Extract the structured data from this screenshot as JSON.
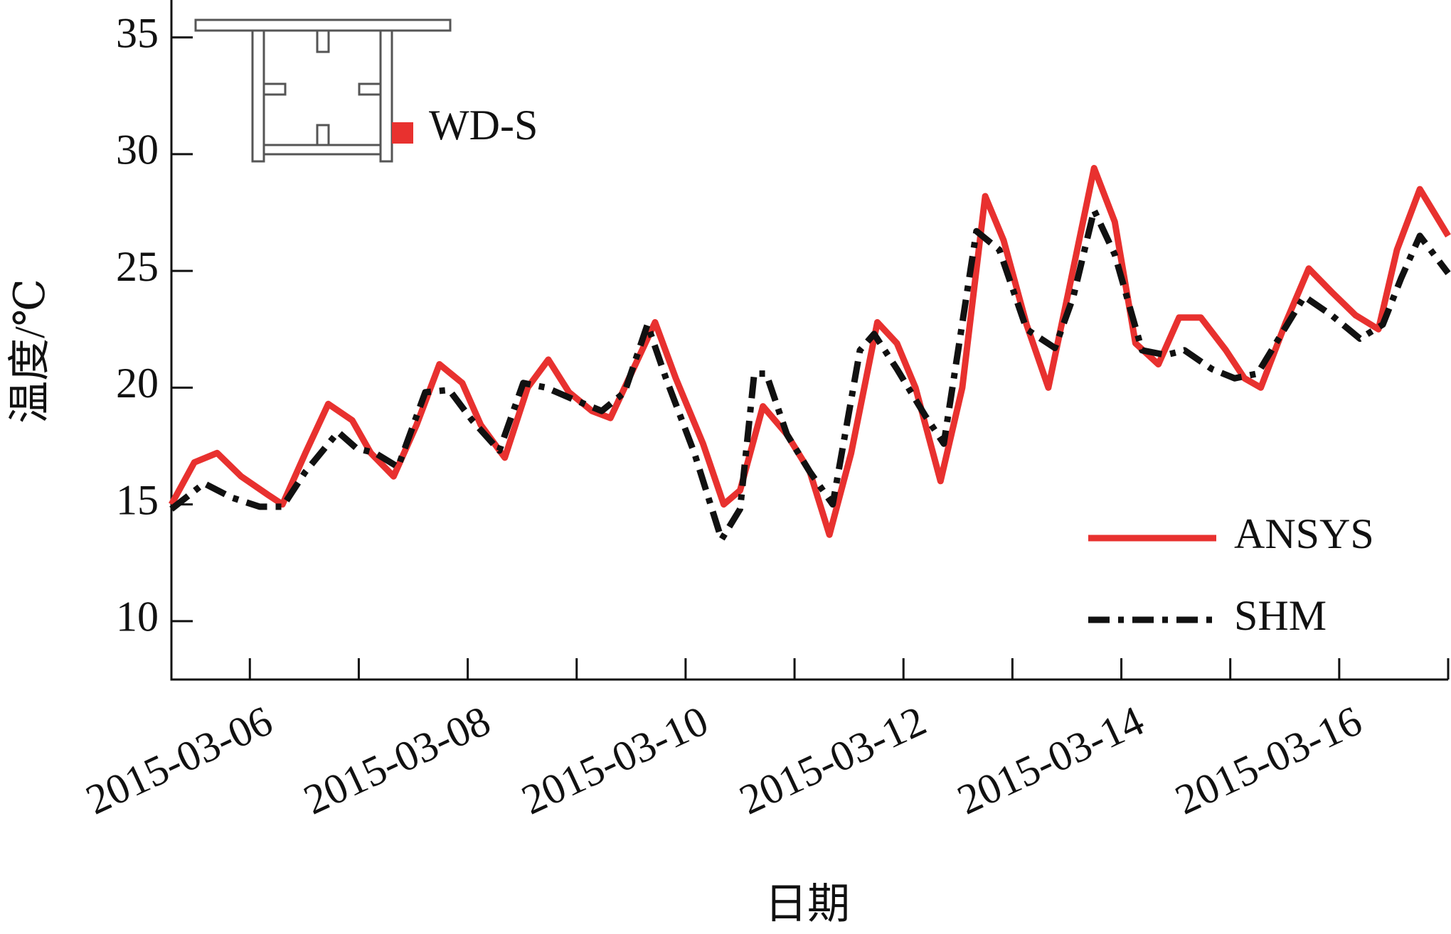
{
  "chart_data": {
    "type": "line",
    "x_label": "日期",
    "y_label": "温度/℃",
    "inset_label": "WD-S",
    "inset_marker_color": "#e8312f",
    "xlim": [
      5.28,
      17.0
    ],
    "ylim": [
      7.5,
      36.6
    ],
    "xticks": [
      {
        "value": 6,
        "label": "2015-03-06"
      },
      {
        "value": 8,
        "label": "2015-03-08"
      },
      {
        "value": 10,
        "label": "2015-03-10"
      },
      {
        "value": 12,
        "label": "2015-03-12"
      },
      {
        "value": 14,
        "label": "2015-03-14"
      },
      {
        "value": 16,
        "label": "2015-03-16"
      }
    ],
    "xminor_ticks": [
      7,
      9,
      11,
      13,
      15,
      17
    ],
    "yticks": [
      10,
      15,
      20,
      25,
      30,
      35
    ],
    "legend": "lower right",
    "series": [
      {
        "name": "ANSYS",
        "color": "#e8312f",
        "style": "solid",
        "x": [
          5.28,
          5.49,
          5.7,
          5.92,
          6.17,
          6.3,
          6.51,
          6.72,
          6.94,
          7.11,
          7.32,
          7.53,
          7.74,
          7.95,
          8.12,
          8.34,
          8.55,
          8.74,
          8.93,
          9.14,
          9.31,
          9.52,
          9.72,
          9.91,
          10.16,
          10.35,
          10.5,
          10.71,
          10.93,
          11.14,
          11.32,
          11.52,
          11.76,
          11.94,
          12.11,
          12.34,
          12.54,
          12.75,
          12.92,
          13.13,
          13.33,
          13.51,
          13.75,
          13.94,
          14.13,
          14.34,
          14.53,
          14.73,
          14.96,
          15.13,
          15.28,
          15.51,
          15.72,
          15.93,
          16.15,
          16.36,
          16.53,
          16.74,
          17.0
        ],
        "values": [
          15.0,
          16.8,
          17.2,
          16.2,
          15.4,
          15.0,
          17.2,
          19.3,
          18.6,
          17.2,
          16.2,
          18.4,
          21.0,
          20.2,
          18.4,
          17.0,
          20.0,
          21.2,
          19.8,
          19.0,
          18.7,
          20.8,
          22.8,
          20.4,
          17.6,
          15.0,
          15.6,
          19.2,
          18.0,
          16.4,
          13.7,
          17.2,
          22.8,
          21.9,
          20.0,
          16.0,
          20.0,
          28.2,
          26.3,
          22.7,
          20.0,
          24.0,
          29.4,
          27.1,
          21.9,
          21.0,
          23.0,
          23.0,
          21.6,
          20.4,
          20.0,
          22.8,
          25.1,
          24.1,
          23.1,
          22.5,
          25.9,
          28.5,
          26.5
        ]
      },
      {
        "name": "SHM",
        "color": "#111111",
        "style": "dashdot",
        "x": [
          5.28,
          5.58,
          5.83,
          6.09,
          6.3,
          6.51,
          6.81,
          6.98,
          7.15,
          7.36,
          7.61,
          7.83,
          8.04,
          8.29,
          8.51,
          8.72,
          8.97,
          9.23,
          9.44,
          9.65,
          9.82,
          10.08,
          10.33,
          10.5,
          10.63,
          10.74,
          10.93,
          11.14,
          11.35,
          11.6,
          11.73,
          11.94,
          12.2,
          12.37,
          12.67,
          12.88,
          13.13,
          13.39,
          13.56,
          13.75,
          13.94,
          14.19,
          14.41,
          14.58,
          14.83,
          15.04,
          15.25,
          15.47,
          15.68,
          15.93,
          16.19,
          16.4,
          16.57,
          16.74,
          17.0
        ],
        "values": [
          14.8,
          15.9,
          15.3,
          14.9,
          14.9,
          16.4,
          18.1,
          17.4,
          17.2,
          16.6,
          19.8,
          19.9,
          18.6,
          17.3,
          20.2,
          20.0,
          19.5,
          19.0,
          19.8,
          22.7,
          20.4,
          17.2,
          13.5,
          14.8,
          20.6,
          20.6,
          18.0,
          16.4,
          15.0,
          21.6,
          22.3,
          20.8,
          18.8,
          17.6,
          26.7,
          25.9,
          22.5,
          21.7,
          23.9,
          27.6,
          25.7,
          21.6,
          21.4,
          21.6,
          20.8,
          20.4,
          20.6,
          22.3,
          23.9,
          23.1,
          22.1,
          22.7,
          24.7,
          26.5,
          24.9
        ]
      }
    ]
  }
}
